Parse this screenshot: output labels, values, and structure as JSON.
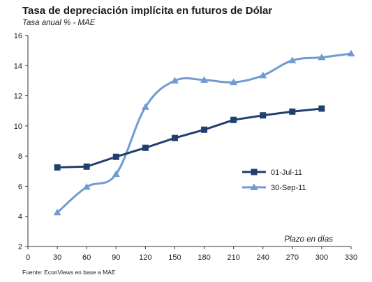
{
  "chart_data": {
    "type": "line",
    "title": "Tasa de depreciación implícita  en futuros  de Dólar",
    "subtitle": "Tasa anual % - MAE",
    "xlabel": "Plazo en días",
    "ylabel": "",
    "source": "Fuente:  EconViews en  base a MAE",
    "xlim": [
      0,
      330
    ],
    "ylim": [
      2,
      16
    ],
    "xticks": [
      0,
      30,
      60,
      90,
      120,
      150,
      180,
      210,
      240,
      270,
      300,
      330
    ],
    "yticks": [
      2,
      4,
      6,
      8,
      10,
      12,
      14,
      16
    ],
    "grid": false,
    "legend_position": "center-right",
    "series": [
      {
        "name": "01-Jul-11",
        "color": "#1f3f6e",
        "marker": "square",
        "smooth": false,
        "x": [
          30,
          60,
          90,
          120,
          150,
          180,
          210,
          240,
          270,
          300
        ],
        "values": [
          7.25,
          7.3,
          7.95,
          8.55,
          9.2,
          9.75,
          10.4,
          10.7,
          10.95,
          11.15
        ]
      },
      {
        "name": "30-Sep-11",
        "color": "#6f9bd1",
        "marker": "triangle",
        "smooth": true,
        "x": [
          30,
          60,
          90,
          120,
          150,
          180,
          210,
          240,
          270,
          300,
          330
        ],
        "values": [
          4.25,
          5.95,
          6.8,
          11.25,
          13.0,
          13.05,
          12.9,
          13.35,
          14.35,
          14.55,
          14.8
        ]
      }
    ]
  }
}
